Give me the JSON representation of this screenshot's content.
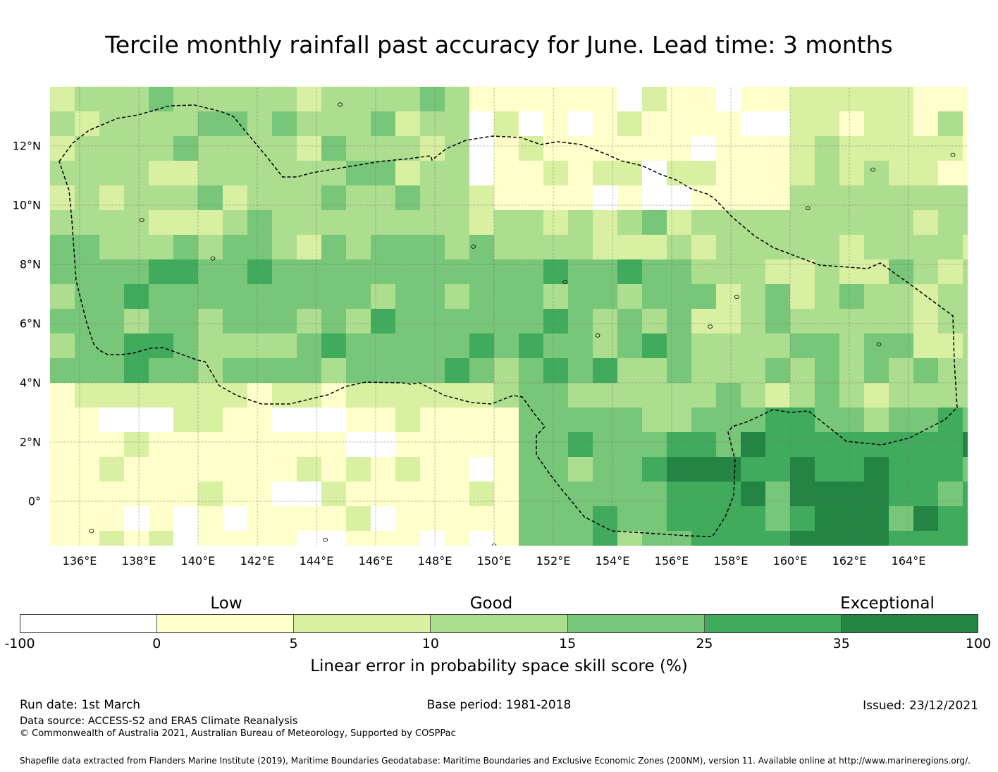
{
  "title": "Tercile monthly rainfall past accuracy for June. Lead time: 3 months",
  "map": {
    "lon_range": [
      135,
      166
    ],
    "lat_range": [
      -1.5,
      14
    ],
    "grid_cell_deg": 0.833,
    "x_ticks": [
      "136°E",
      "138°E",
      "140°E",
      "142°E",
      "144°E",
      "146°E",
      "148°E",
      "150°E",
      "152°E",
      "154°E",
      "156°E",
      "158°E",
      "160°E",
      "162°E",
      "164°E"
    ],
    "x_tick_values": [
      136,
      138,
      140,
      142,
      144,
      146,
      148,
      150,
      152,
      154,
      156,
      158,
      160,
      162,
      164
    ],
    "y_ticks": [
      "12°N",
      "10°N",
      "8°N",
      "6°N",
      "4°N",
      "2°N",
      "0°"
    ],
    "y_tick_values": [
      12,
      10,
      8,
      6,
      4,
      2,
      0
    ],
    "eez_boundary": "dashed black line enclosing the Federated States of Micronesia exclusive economic zone",
    "regions": [
      {
        "desc": "north-west",
        "score_class": 3
      },
      {
        "desc": "central band 4N-8N",
        "score_class": 4
      },
      {
        "desc": "south-west",
        "score_class": 1
      },
      {
        "desc": "north-east",
        "score_class": 1
      },
      {
        "desc": "south-east equatorial",
        "score_class": 5
      }
    ]
  },
  "colorbar": {
    "categories": [
      "Low",
      "Good",
      "Exceptional"
    ],
    "ticks": [
      "-100",
      "0",
      "5",
      "10",
      "15",
      "25",
      "35",
      "100"
    ],
    "colors": [
      "#ffffff",
      "#ffffcc",
      "#d9f0a3",
      "#addd8e",
      "#78c679",
      "#41ab5d",
      "#238443"
    ],
    "label": "Linear error in probability space skill score (%)"
  },
  "footer": {
    "run_date": "Run date: 1st March",
    "base_period": "Base period: 1981-2018",
    "issued": "Issued: 23/12/2021",
    "data_source": "Data source: ACCESS-S2 and ERA5 Climate Reanalysis",
    "copyright": "© Commonwealth of Australia 2021, Australian Bureau of Meteorology, Supported by COSPPac",
    "shapefile": "Shapefile data extracted from Flanders Marine Institute (2019), Maritime Boundaries Geodatabase: Maritime Boundaries and Exclusive Economic Zones (200NM), version 11. Available online at http://www.marineregions.org/."
  }
}
